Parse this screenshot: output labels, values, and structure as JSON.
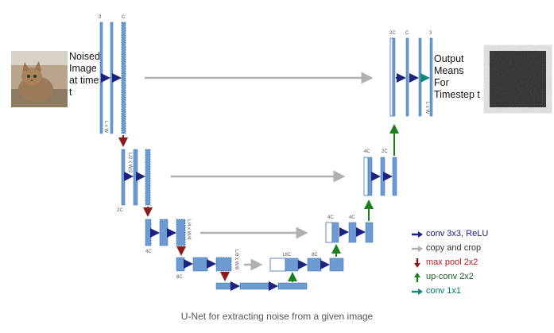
{
  "input_text": [
    "Noised",
    "Image",
    "at time",
    "t"
  ],
  "output_text": [
    "Output",
    "Means",
    "For",
    "Timestep t"
  ],
  "channel_labels": {
    "c1a": "3",
    "c1b": "C",
    "c2": "2C",
    "c3": "4C",
    "c4": "8C",
    "c5": "16C",
    "u4": "8C",
    "u4b": "4C",
    "u3a": "4C",
    "u3b": "2C",
    "u2a": "2C",
    "u2b": "C",
    "u2c": "3"
  },
  "dim_labels": {
    "l1": "L x W",
    "l2": "L/2 x W/2",
    "l3": "L/4 x W/4",
    "l4": "L/8 x W/8",
    "r1": "L x W"
  },
  "legend": {
    "conv": "conv 3x3, ReLU",
    "copy": "copy and crop",
    "pool": "max pool 2x2",
    "up": "up-conv 2x2",
    "conv1x1": "conv 1x1"
  },
  "caption": "U-Net for extracting noise from a given image",
  "colors": {
    "block": "#6b9bd1",
    "block_border": "#3f6fa8",
    "conv_arrow": "#1a237e",
    "copy_arrow": "#b0b0b0",
    "pool_arrow": "#8b1a1a",
    "up_arrow": "#1e7d1e",
    "conv1x1_arrow": "#13857f"
  }
}
